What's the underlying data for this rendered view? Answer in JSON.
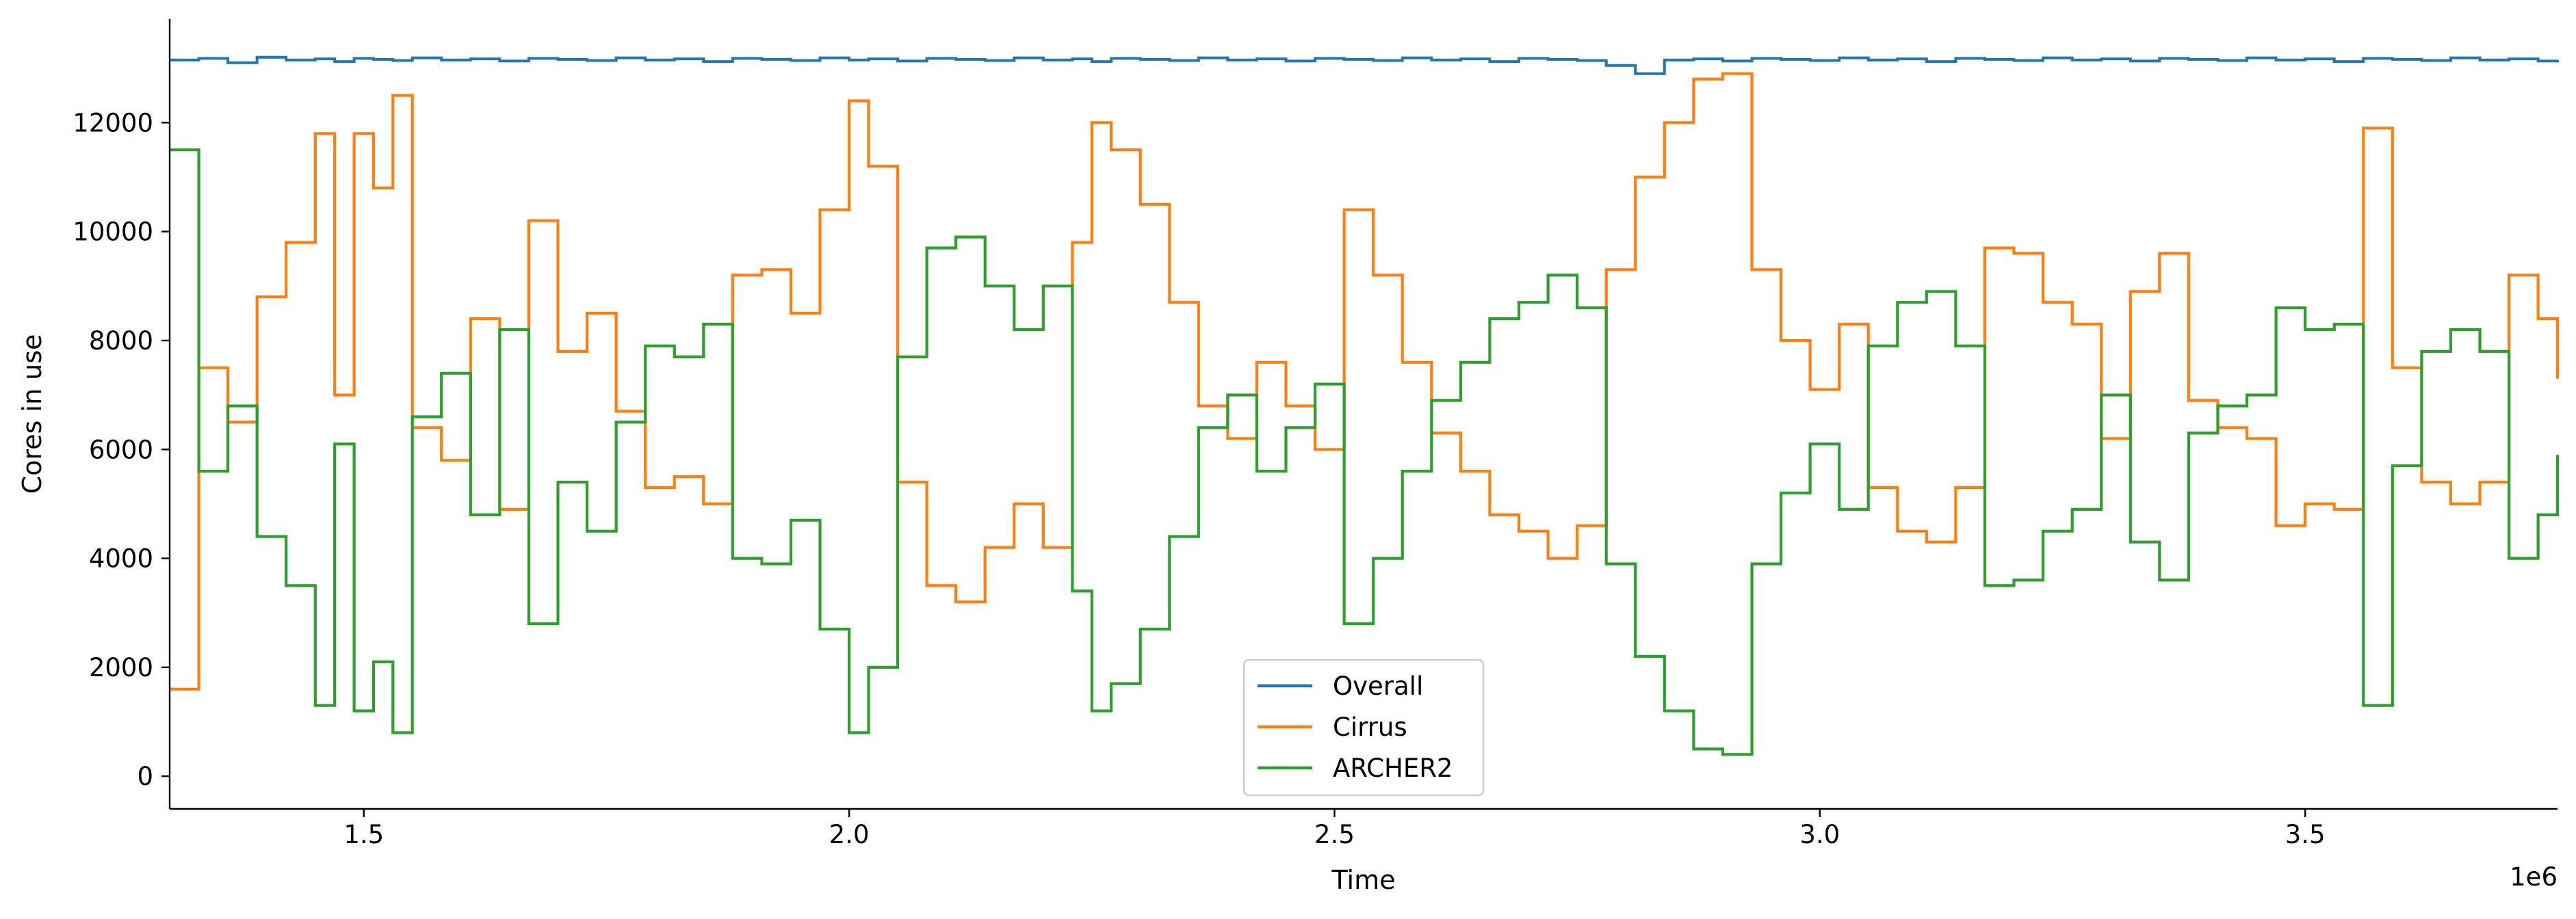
{
  "chart_data": {
    "type": "line",
    "title": "",
    "xlabel": "Time",
    "ylabel": "Cores in use",
    "x_offset_label": "1e6",
    "xlim": [
      1.3,
      3.76
    ],
    "ylim": [
      -600,
      13900
    ],
    "x_ticks": [
      1.5,
      2.0,
      2.5,
      3.0,
      3.5
    ],
    "x_tick_labels": [
      "1.5",
      "2.0",
      "2.5",
      "3.0",
      "3.5"
    ],
    "y_ticks": [
      0,
      2000,
      4000,
      6000,
      8000,
      10000,
      12000
    ],
    "y_tick_labels": [
      "0",
      "2000",
      "4000",
      "6000",
      "8000",
      "10000",
      "12000"
    ],
    "grid": false,
    "legend_position": "bottom-center",
    "x": [
      1.3,
      1.33,
      1.36,
      1.39,
      1.42,
      1.45,
      1.47,
      1.49,
      1.51,
      1.53,
      1.55,
      1.58,
      1.61,
      1.64,
      1.67,
      1.7,
      1.73,
      1.76,
      1.79,
      1.82,
      1.85,
      1.88,
      1.91,
      1.94,
      1.97,
      2.0,
      2.02,
      2.05,
      2.08,
      2.11,
      2.14,
      2.17,
      2.2,
      2.23,
      2.25,
      2.27,
      2.3,
      2.33,
      2.36,
      2.39,
      2.42,
      2.45,
      2.48,
      2.51,
      2.54,
      2.57,
      2.6,
      2.63,
      2.66,
      2.69,
      2.72,
      2.75,
      2.78,
      2.81,
      2.84,
      2.87,
      2.9,
      2.93,
      2.96,
      2.99,
      3.02,
      3.05,
      3.08,
      3.11,
      3.14,
      3.17,
      3.2,
      3.23,
      3.26,
      3.29,
      3.32,
      3.35,
      3.38,
      3.41,
      3.44,
      3.47,
      3.5,
      3.53,
      3.56,
      3.59,
      3.62,
      3.65,
      3.68,
      3.71,
      3.74,
      3.76
    ],
    "series": [
      {
        "name": "Overall",
        "color": "#1f77b4",
        "values": [
          13150,
          13180,
          13100,
          13200,
          13150,
          13170,
          13120,
          13180,
          13160,
          13140,
          13190,
          13150,
          13170,
          13130,
          13180,
          13160,
          13140,
          13190,
          13150,
          13170,
          13120,
          13180,
          13160,
          13140,
          13190,
          13150,
          13170,
          13130,
          13180,
          13160,
          13140,
          13190,
          13150,
          13170,
          13120,
          13180,
          13160,
          13140,
          13190,
          13150,
          13170,
          13130,
          13180,
          13160,
          13140,
          13190,
          13150,
          13170,
          13120,
          13180,
          13160,
          13140,
          13050,
          12900,
          13150,
          13170,
          13130,
          13180,
          13160,
          13140,
          13190,
          13150,
          13170,
          13120,
          13180,
          13160,
          13140,
          13190,
          13150,
          13170,
          13130,
          13180,
          13160,
          13140,
          13190,
          13150,
          13170,
          13120,
          13180,
          13160,
          13140,
          13190,
          13150,
          13170,
          13130,
          13150
        ]
      },
      {
        "name": "Cirrus",
        "color": "#ff7f0e",
        "values": [
          1600,
          7500,
          6500,
          8800,
          9800,
          11800,
          7000,
          11800,
          10800,
          12500,
          6400,
          5800,
          8400,
          4900,
          10200,
          7800,
          8500,
          6700,
          5300,
          5500,
          5000,
          9200,
          9300,
          8500,
          10400,
          12400,
          11200,
          5400,
          3500,
          3200,
          4200,
          5000,
          4200,
          9800,
          12000,
          11500,
          10500,
          8700,
          6800,
          6200,
          7600,
          6800,
          6000,
          10400,
          9200,
          7600,
          6300,
          5600,
          4800,
          4500,
          4000,
          4600,
          9300,
          11000,
          12000,
          12800,
          12900,
          9300,
          8000,
          7100,
          8300,
          5300,
          4500,
          4300,
          5300,
          9700,
          9600,
          8700,
          8300,
          6200,
          8900,
          9600,
          6900,
          6400,
          6200,
          4600,
          5000,
          4900,
          11900,
          7500,
          5400,
          5000,
          5400,
          9200,
          8400,
          7300
        ]
      },
      {
        "name": "ARCHER2",
        "color": "#2ca02c",
        "values": [
          11500,
          5600,
          6800,
          4400,
          3500,
          1300,
          6100,
          1200,
          2100,
          800,
          6600,
          7400,
          4800,
          8200,
          2800,
          5400,
          4500,
          6500,
          7900,
          7700,
          8300,
          4000,
          3900,
          4700,
          2700,
          800,
          2000,
          7700,
          9700,
          9900,
          9000,
          8200,
          9000,
          3400,
          1200,
          1700,
          2700,
          4400,
          6400,
          7000,
          5600,
          6400,
          7200,
          2800,
          4000,
          5600,
          6900,
          7600,
          8400,
          8700,
          9200,
          8600,
          3900,
          2200,
          1200,
          500,
          400,
          3900,
          5200,
          6100,
          4900,
          7900,
          8700,
          8900,
          7900,
          3500,
          3600,
          4500,
          4900,
          7000,
          4300,
          3600,
          6300,
          6800,
          7000,
          8600,
          8200,
          8300,
          1300,
          5700,
          7800,
          8200,
          7800,
          4000,
          4800,
          5900
        ]
      }
    ]
  }
}
